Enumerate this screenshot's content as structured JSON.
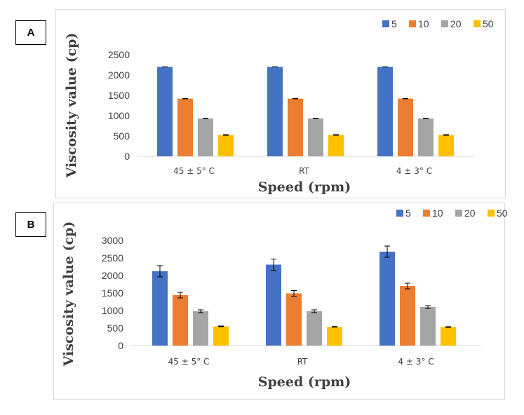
{
  "colors": {
    "s5": "#4472C4",
    "s10": "#ED7D31",
    "s20": "#A5A5A5",
    "s50": "#FFC000",
    "axis": "#d9d9d9",
    "text": "#404040",
    "err": "#000000"
  },
  "chart_data": [
    {
      "panel": "A",
      "type": "bar",
      "categories": [
        "45 ± 5° C",
        "RT",
        "4 ± 3° C"
      ],
      "xlabel": "Speed (rpm)",
      "ylabel": "Viscosity value (cp)",
      "ylim": [
        0,
        2500
      ],
      "yticks": [
        0,
        500,
        1000,
        1500,
        2000,
        2500
      ],
      "grid": false,
      "legend_position": "top-right",
      "series": [
        {
          "name": "5",
          "values": [
            2200,
            2200,
            2200
          ],
          "errors": [
            0,
            0,
            0
          ]
        },
        {
          "name": "10",
          "values": [
            1420,
            1420,
            1420
          ],
          "errors": [
            5,
            5,
            5
          ]
        },
        {
          "name": "20",
          "values": [
            930,
            930,
            930
          ],
          "errors": [
            5,
            5,
            5
          ]
        },
        {
          "name": "50",
          "values": [
            525,
            525,
            525
          ],
          "errors": [
            8,
            8,
            8
          ]
        }
      ]
    },
    {
      "panel": "B",
      "type": "bar",
      "categories": [
        "45 ± 5° C",
        "RT",
        "4 ± 3° C"
      ],
      "xlabel": "Speed (rpm)",
      "ylabel": "Viscosity value (cp)",
      "ylim": [
        0,
        3000
      ],
      "yticks": [
        0,
        500,
        1000,
        1500,
        2000,
        2500,
        3000
      ],
      "grid": false,
      "legend_position": "top-right",
      "series": [
        {
          "name": "5",
          "values": [
            2120,
            2310,
            2680
          ],
          "errors": [
            160,
            160,
            160
          ]
        },
        {
          "name": "10",
          "values": [
            1440,
            1490,
            1700
          ],
          "errors": [
            80,
            80,
            80
          ]
        },
        {
          "name": "20",
          "values": [
            980,
            980,
            1100
          ],
          "errors": [
            40,
            40,
            40
          ]
        },
        {
          "name": "50",
          "values": [
            550,
            535,
            530
          ],
          "errors": [
            10,
            10,
            10
          ]
        }
      ]
    }
  ],
  "labels": {
    "a": "A",
    "b": "B"
  }
}
